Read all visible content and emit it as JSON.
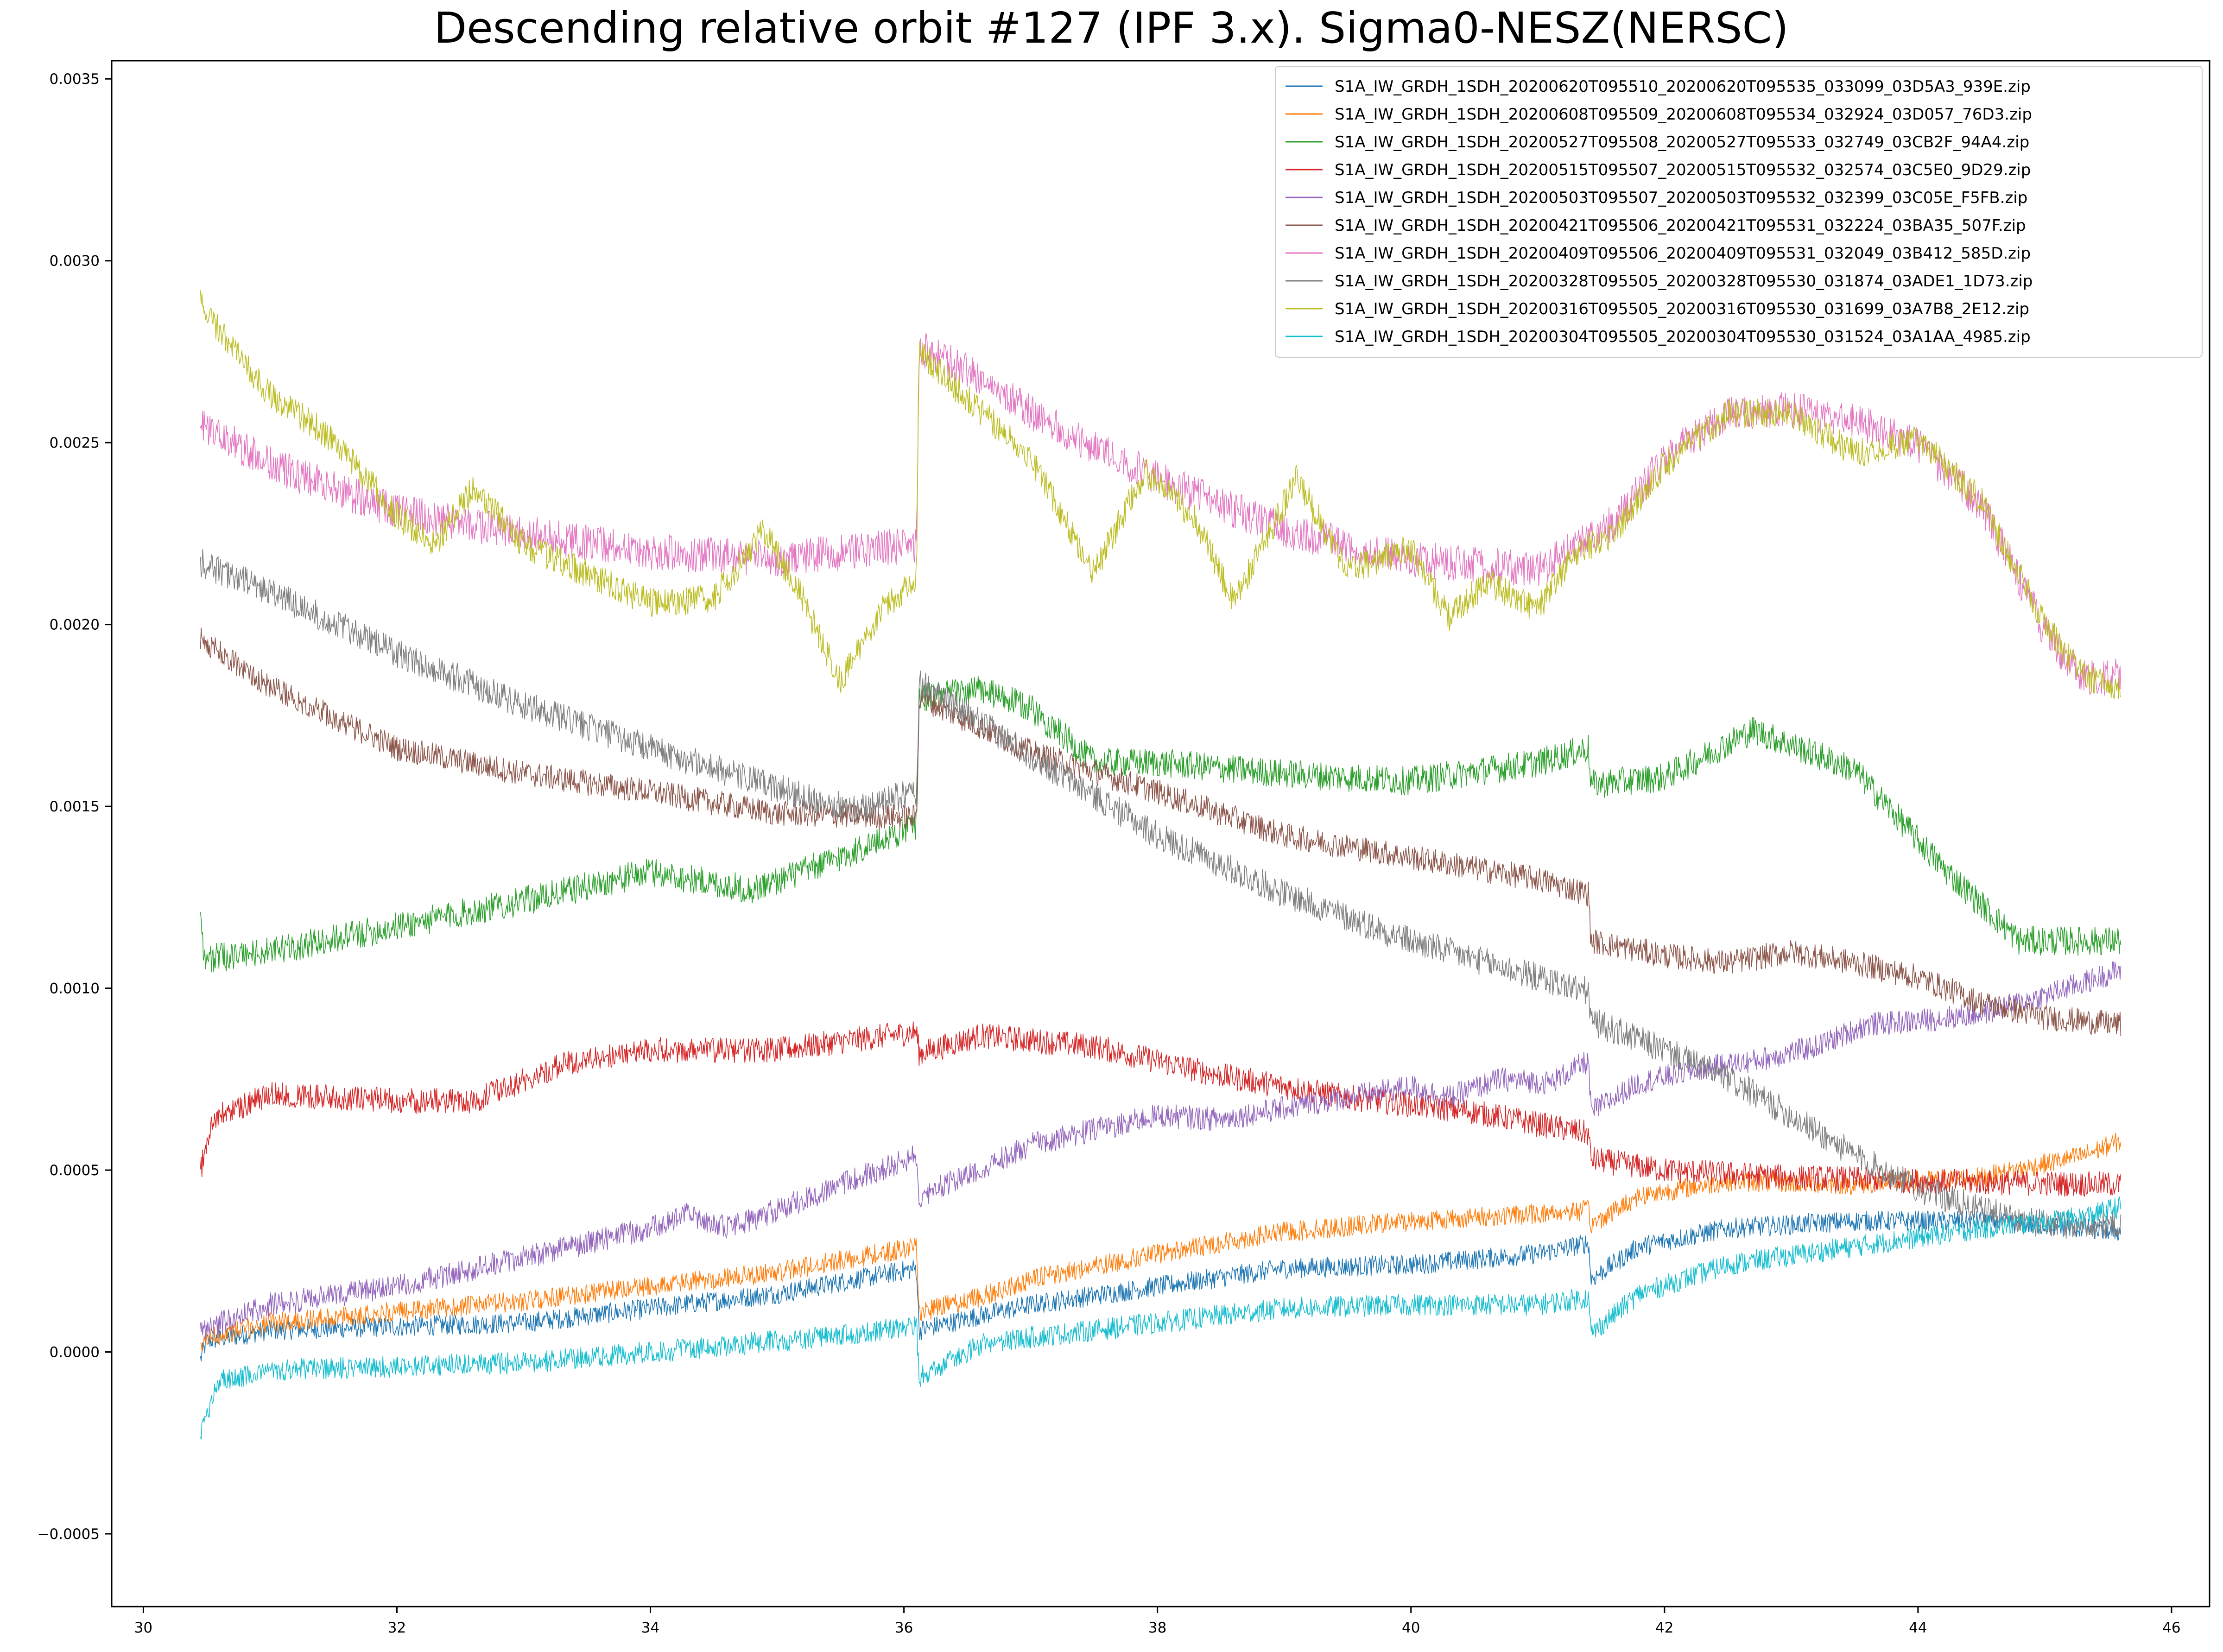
{
  "chart_data": {
    "type": "line",
    "title": "Descending relative orbit #127 (IPF 3.x). Sigma0-NESZ(NERSC)",
    "xlabel": "",
    "ylabel": "",
    "xlim": [
      29.75,
      46.3
    ],
    "ylim": [
      -0.0007,
      0.00355
    ],
    "grid": false,
    "legend_position": "top-right",
    "x_ticks": [
      30,
      32,
      34,
      36,
      38,
      40,
      42,
      44,
      46
    ],
    "x_tick_labels": [
      "30",
      "32",
      "34",
      "36",
      "38",
      "40",
      "42",
      "44",
      "46"
    ],
    "y_ticks": [
      -0.0005,
      0.0,
      0.0005,
      0.001,
      0.0015,
      0.002,
      0.0025,
      0.003,
      0.0035
    ],
    "y_tick_labels": [
      "−0.0005",
      "0.0000",
      "0.0005",
      "0.0010",
      "0.0015",
      "0.0020",
      "0.0025",
      "0.0030",
      "0.0035"
    ],
    "series": [
      {
        "name": "S1A_IW_GRDH_1SDH_20200620T095510_20200620T095535_033099_03D5A3_939E.zip",
        "color": "#1f77b4",
        "noise": 2.8e-05,
        "points": [
          [
            30.45,
            -2e-05
          ],
          [
            30.5,
            3e-05
          ],
          [
            31,
            6e-05
          ],
          [
            32,
            7e-05
          ],
          [
            33,
            8e-05
          ],
          [
            34,
            0.00012
          ],
          [
            35,
            0.00016
          ],
          [
            36.1,
            0.00023
          ],
          [
            36.12,
            6e-05
          ],
          [
            36.6,
            0.0001
          ],
          [
            37,
            0.00013
          ],
          [
            38,
            0.00018
          ],
          [
            39,
            0.00023
          ],
          [
            40,
            0.00024
          ],
          [
            41,
            0.00027
          ],
          [
            41.4,
            0.0003
          ],
          [
            41.42,
            0.0002
          ],
          [
            41.8,
            0.00029
          ],
          [
            42.5,
            0.00034
          ],
          [
            43.5,
            0.00036
          ],
          [
            44.5,
            0.00036
          ],
          [
            45.3,
            0.00034
          ],
          [
            45.6,
            0.00033
          ]
        ]
      },
      {
        "name": "S1A_IW_GRDH_1SDH_20200608T095509_20200608T095534_032924_03D057_76D3.zip",
        "color": "#ff7f0e",
        "noise": 2.8e-05,
        "points": [
          [
            30.45,
            0.0
          ],
          [
            30.5,
            4e-05
          ],
          [
            31,
            8e-05
          ],
          [
            32,
            0.00011
          ],
          [
            33,
            0.00014
          ],
          [
            34,
            0.00018
          ],
          [
            35,
            0.00022
          ],
          [
            36.1,
            0.00029
          ],
          [
            36.12,
            0.00011
          ],
          [
            36.6,
            0.00015
          ],
          [
            37,
            0.0002
          ],
          [
            38,
            0.00027
          ],
          [
            39,
            0.00033
          ],
          [
            40,
            0.00036
          ],
          [
            41,
            0.00038
          ],
          [
            41.4,
            0.00039
          ],
          [
            41.42,
            0.00035
          ],
          [
            41.8,
            0.00043
          ],
          [
            42.5,
            0.00047
          ],
          [
            43.5,
            0.00046
          ],
          [
            44.5,
            0.00048
          ],
          [
            45.3,
            0.00054
          ],
          [
            45.6,
            0.00058
          ]
        ]
      },
      {
        "name": "S1A_IW_GRDH_1SDH_20200527T095508_20200527T095533_032749_03CB2F_94A4.zip",
        "color": "#2ca02c",
        "noise": 4e-05,
        "points": [
          [
            30.45,
            0.00123
          ],
          [
            30.48,
            0.00108
          ],
          [
            31,
            0.0011
          ],
          [
            32,
            0.00117
          ],
          [
            33,
            0.00124
          ],
          [
            34,
            0.00132
          ],
          [
            34.8,
            0.00127
          ],
          [
            35.5,
            0.00136
          ],
          [
            36.1,
            0.00145
          ],
          [
            36.12,
            0.0018
          ],
          [
            36.6,
            0.00182
          ],
          [
            37,
            0.00177
          ],
          [
            37.5,
            0.00162
          ],
          [
            38,
            0.00162
          ],
          [
            39,
            0.00159
          ],
          [
            40,
            0.00157
          ],
          [
            41,
            0.00162
          ],
          [
            41.4,
            0.00166
          ],
          [
            41.42,
            0.00156
          ],
          [
            42,
            0.00158
          ],
          [
            42.7,
            0.00171
          ],
          [
            43.5,
            0.0016
          ],
          [
            44.2,
            0.00133
          ],
          [
            44.8,
            0.00113
          ],
          [
            45.6,
            0.00113
          ]
        ]
      },
      {
        "name": "S1A_IW_GRDH_1SDH_20200515T095507_20200515T095532_032574_03C5E0_9D29.zip",
        "color": "#d62728",
        "noise": 3.5e-05,
        "points": [
          [
            30.45,
            0.0005
          ],
          [
            30.55,
            0.00064
          ],
          [
            31,
            0.00071
          ],
          [
            32,
            0.00069
          ],
          [
            32.6,
            0.00069
          ],
          [
            33.3,
            0.00079
          ],
          [
            34,
            0.00083
          ],
          [
            35,
            0.00083
          ],
          [
            36.1,
            0.00088
          ],
          [
            36.12,
            0.00082
          ],
          [
            36.6,
            0.00087
          ],
          [
            37.5,
            0.00084
          ],
          [
            38.5,
            0.00076
          ],
          [
            39.5,
            0.0007
          ],
          [
            40.5,
            0.00066
          ],
          [
            41.4,
            0.0006
          ],
          [
            41.42,
            0.00053
          ],
          [
            42,
            0.0005
          ],
          [
            43,
            0.00048
          ],
          [
            44,
            0.00047
          ],
          [
            45.6,
            0.00046
          ]
        ]
      },
      {
        "name": "S1A_IW_GRDH_1SDH_20200503T095507_20200503T095532_032399_03C05E_F5FB.zip",
        "color": "#9467bd",
        "noise": 3.3e-05,
        "points": [
          [
            30.45,
            6e-05
          ],
          [
            31,
            0.00013
          ],
          [
            32,
            0.00018
          ],
          [
            33,
            0.00026
          ],
          [
            34,
            0.00034
          ],
          [
            34.3,
            0.00038
          ],
          [
            34.6,
            0.00034
          ],
          [
            35,
            0.00039
          ],
          [
            35.5,
            0.00046
          ],
          [
            36.1,
            0.00054
          ],
          [
            36.12,
            0.00043
          ],
          [
            36.6,
            0.0005
          ],
          [
            37,
            0.00057
          ],
          [
            37.5,
            0.00061
          ],
          [
            38,
            0.00065
          ],
          [
            38.5,
            0.00064
          ],
          [
            39,
            0.00067
          ],
          [
            40,
            0.00073
          ],
          [
            40.3,
            0.0007
          ],
          [
            40.7,
            0.00075
          ],
          [
            41.1,
            0.00074
          ],
          [
            41.4,
            0.0008
          ],
          [
            41.42,
            0.00066
          ],
          [
            41.8,
            0.00074
          ],
          [
            42.3,
            0.00078
          ],
          [
            42.7,
            0.0008
          ],
          [
            43.2,
            0.00084
          ],
          [
            43.6,
            0.0009
          ],
          [
            44,
            0.00091
          ],
          [
            44.5,
            0.00093
          ],
          [
            45,
            0.00098
          ],
          [
            45.6,
            0.00105
          ]
        ]
      },
      {
        "name": "S1A_IW_GRDH_1SDH_20200421T095506_20200421T095531_032224_03BA35_507F.zip",
        "color": "#8c564b",
        "noise": 3.5e-05,
        "points": [
          [
            30.45,
            0.00196
          ],
          [
            31,
            0.00183
          ],
          [
            32,
            0.00166
          ],
          [
            33,
            0.00159
          ],
          [
            34,
            0.00154
          ],
          [
            35,
            0.00148
          ],
          [
            36.1,
            0.00147
          ],
          [
            36.12,
            0.0018
          ],
          [
            37,
            0.00165
          ],
          [
            38,
            0.00154
          ],
          [
            39,
            0.00142
          ],
          [
            40,
            0.00136
          ],
          [
            41,
            0.0013
          ],
          [
            41.4,
            0.00126
          ],
          [
            41.42,
            0.00113
          ],
          [
            42,
            0.00109
          ],
          [
            42.5,
            0.00107
          ],
          [
            43,
            0.0011
          ],
          [
            43.5,
            0.00107
          ],
          [
            44,
            0.00103
          ],
          [
            44.5,
            0.00096
          ],
          [
            45,
            0.00092
          ],
          [
            45.6,
            0.0009
          ]
        ]
      },
      {
        "name": "S1A_IW_GRDH_1SDH_20200409T095506_20200409T095531_032049_03B412_585D.zip",
        "color": "#e377c2",
        "noise": 5e-05,
        "points": [
          [
            30.45,
            0.00255
          ],
          [
            31,
            0.00244
          ],
          [
            32,
            0.00231
          ],
          [
            33,
            0.00225
          ],
          [
            34,
            0.0022
          ],
          [
            35,
            0.00218
          ],
          [
            36.1,
            0.00222
          ],
          [
            36.12,
            0.00276
          ],
          [
            36.6,
            0.00268
          ],
          [
            37,
            0.00258
          ],
          [
            38,
            0.0024
          ],
          [
            39,
            0.00226
          ],
          [
            40,
            0.00218
          ],
          [
            41,
            0.00215
          ],
          [
            41.6,
            0.00228
          ],
          [
            42,
            0.00246
          ],
          [
            42.5,
            0.00258
          ],
          [
            43,
            0.00259
          ],
          [
            43.5,
            0.00256
          ],
          [
            44,
            0.00249
          ],
          [
            44.5,
            0.00233
          ],
          [
            45,
            0.00198
          ],
          [
            45.3,
            0.00185
          ],
          [
            45.6,
            0.00186
          ]
        ]
      },
      {
        "name": "S1A_IW_GRDH_1SDH_20200328T095505_20200328T095530_031874_03ADE1_1D73.zip",
        "color": "#7f7f7f",
        "noise": 4e-05,
        "points": [
          [
            30.45,
            0.00217
          ],
          [
            31,
            0.00209
          ],
          [
            32,
            0.00192
          ],
          [
            33,
            0.00178
          ],
          [
            34,
            0.00166
          ],
          [
            35,
            0.00155
          ],
          [
            35.6,
            0.00149
          ],
          [
            36.1,
            0.00154
          ],
          [
            36.12,
            0.00184
          ],
          [
            37,
            0.00164
          ],
          [
            38,
            0.00142
          ],
          [
            39,
            0.00126
          ],
          [
            40,
            0.00113
          ],
          [
            41,
            0.00103
          ],
          [
            41.4,
            0.00099
          ],
          [
            41.42,
            0.00091
          ],
          [
            42,
            0.00083
          ],
          [
            42.5,
            0.00075
          ],
          [
            43,
            0.00065
          ],
          [
            43.5,
            0.00054
          ],
          [
            44,
            0.00045
          ],
          [
            44.5,
            0.00039
          ],
          [
            45,
            0.00035
          ],
          [
            45.6,
            0.00035
          ]
        ]
      },
      {
        "name": "S1A_IW_GRDH_1SDH_20200316T095505_20200316T095530_031699_03A7B8_2E12.zip",
        "color": "#bcbd22",
        "noise": 4e-05,
        "points": [
          [
            30.45,
            0.00288
          ],
          [
            30.7,
            0.00276
          ],
          [
            31,
            0.00263
          ],
          [
            31.5,
            0.00251
          ],
          [
            32,
            0.0023
          ],
          [
            32.3,
            0.00222
          ],
          [
            32.6,
            0.00238
          ],
          [
            33,
            0.00222
          ],
          [
            33.5,
            0.00214
          ],
          [
            34,
            0.00206
          ],
          [
            34.5,
            0.00207
          ],
          [
            34.9,
            0.00226
          ],
          [
            35.2,
            0.00207
          ],
          [
            35.5,
            0.00184
          ],
          [
            35.8,
            0.00203
          ],
          [
            36.1,
            0.00213
          ],
          [
            36.12,
            0.00275
          ],
          [
            36.5,
            0.00262
          ],
          [
            37,
            0.00246
          ],
          [
            37.5,
            0.00214
          ],
          [
            37.9,
            0.00242
          ],
          [
            38.3,
            0.00229
          ],
          [
            38.6,
            0.00206
          ],
          [
            39.1,
            0.0024
          ],
          [
            39.5,
            0.00215
          ],
          [
            40,
            0.00221
          ],
          [
            40.3,
            0.00202
          ],
          [
            40.6,
            0.00212
          ],
          [
            41,
            0.00204
          ],
          [
            41.3,
            0.0022
          ],
          [
            41.6,
            0.00225
          ],
          [
            42,
            0.00244
          ],
          [
            42.5,
            0.00258
          ],
          [
            43,
            0.00258
          ],
          [
            43.5,
            0.00247
          ],
          [
            44,
            0.00251
          ],
          [
            44.5,
            0.00234
          ],
          [
            45,
            0.002
          ],
          [
            45.3,
            0.00186
          ],
          [
            45.6,
            0.00182
          ]
        ]
      },
      {
        "name": "S1A_IW_GRDH_1SDH_20200304T095505_20200304T095530_031524_03A1AA_4985.zip",
        "color": "#17becf",
        "noise": 3e-05,
        "points": [
          [
            30.45,
            -0.00022
          ],
          [
            30.6,
            -8e-05
          ],
          [
            31,
            -5e-05
          ],
          [
            32,
            -4e-05
          ],
          [
            33,
            -3e-05
          ],
          [
            34,
            0.0
          ],
          [
            35,
            3e-05
          ],
          [
            36.1,
            7e-05
          ],
          [
            36.12,
            -7e-05
          ],
          [
            36.6,
            2e-05
          ],
          [
            37,
            4e-05
          ],
          [
            38,
            8e-05
          ],
          [
            39,
            0.00012
          ],
          [
            40,
            0.00013
          ],
          [
            41,
            0.00013
          ],
          [
            41.4,
            0.00015
          ],
          [
            41.42,
            5e-05
          ],
          [
            41.8,
            0.00016
          ],
          [
            42.5,
            0.00024
          ],
          [
            43.5,
            0.00029
          ],
          [
            44.5,
            0.00034
          ],
          [
            45.3,
            0.00037
          ],
          [
            45.6,
            0.0004
          ]
        ]
      }
    ]
  }
}
